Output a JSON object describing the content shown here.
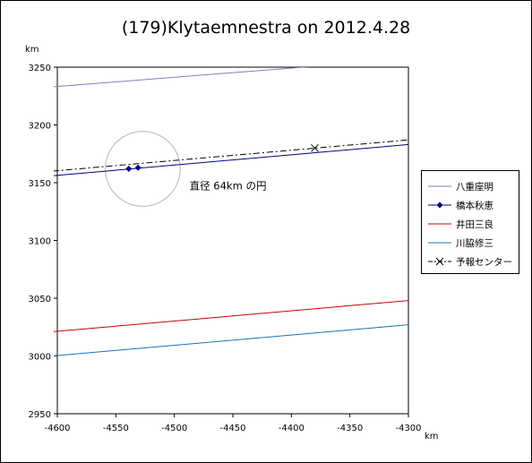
{
  "chart_data": {
    "type": "line",
    "title": "(179)Klytaemnestra on 2012.4.28",
    "xlabel": "km",
    "ylabel": "km",
    "xlim": [
      -4600,
      -4300
    ],
    "ylim": [
      2950,
      3250
    ],
    "xticks": [
      -4600,
      -4550,
      -4500,
      -4450,
      -4400,
      -4350,
      -4300
    ],
    "yticks": [
      2950,
      3000,
      3050,
      3100,
      3150,
      3200,
      3250
    ],
    "grid": false,
    "legend_position": "right",
    "series": [
      {
        "name": "八重座明",
        "color": "#7f7fbf",
        "style": "solid",
        "markers": "none",
        "x": [
          -4604,
          -4365
        ],
        "y": [
          3233,
          3252
        ]
      },
      {
        "name": "橋本秋恵",
        "color": "#000080",
        "style": "solid",
        "markers": "diamond",
        "x": [
          -4604,
          -4300
        ],
        "y": [
          3156,
          3183
        ],
        "points": {
          "x": [
            -4539,
            -4531
          ],
          "y": [
            3162,
            3163
          ]
        }
      },
      {
        "name": "井田三良",
        "color": "#cc0000",
        "style": "solid",
        "markers": "none",
        "x": [
          -4604,
          -4300
        ],
        "y": [
          3021,
          3048
        ]
      },
      {
        "name": "川脇修三",
        "color": "#1f6fbf",
        "style": "solid",
        "markers": "none",
        "x": [
          -4604,
          -4300
        ],
        "y": [
          3000,
          3027
        ]
      },
      {
        "name": "予報センター",
        "color": "#000000",
        "style": "dashdot",
        "markers": "x",
        "x": [
          -4604,
          -4300
        ],
        "y": [
          3160,
          3187
        ],
        "points": {
          "x": [
            -4380
          ],
          "y": [
            3180
          ]
        }
      }
    ],
    "annotations": [
      {
        "text": "直径 64km の円",
        "x": -4487,
        "y": 3144
      }
    ],
    "circle": {
      "center_x": -4527,
      "center_y": 3162,
      "diameter": 64,
      "color": "#c0c0c0"
    }
  }
}
